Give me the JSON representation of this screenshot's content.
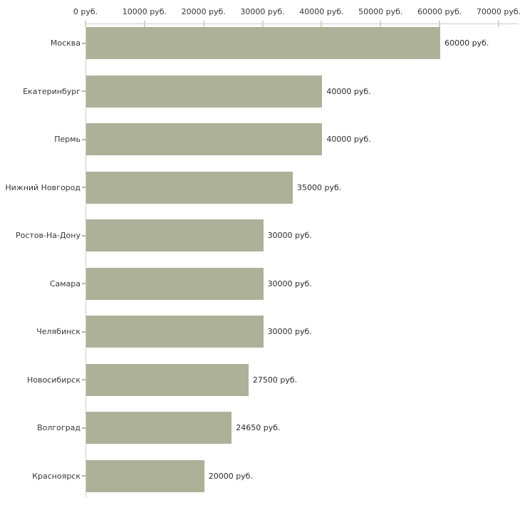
{
  "chart_data": {
    "type": "bar",
    "orientation": "horizontal",
    "title": "",
    "xlabel": "",
    "ylabel": "",
    "grid": false,
    "legend": false,
    "background": "#ffffff",
    "bar_color": "#adb197",
    "axis_line_color": "#cccccc",
    "tick_mark_color": "#d5d7b1",
    "text_color": "#383838",
    "categories": [
      "Москва",
      "Екатеринбург",
      "Пермь",
      "Нижний Новгород",
      "Ростов-На-Дону",
      "Самара",
      "Челябинск",
      "Новосибирск",
      "Волгоград",
      "Красноярск"
    ],
    "values": [
      60000,
      40000,
      40000,
      35000,
      30000,
      30000,
      30000,
      27500,
      24650,
      20000
    ],
    "value_labels": [
      "60000 руб.",
      "40000 руб.",
      "40000 руб.",
      "35000 руб.",
      "30000 руб.",
      "30000 руб.",
      "30000 руб.",
      "27500 руб.",
      "24650 руб.",
      "20000 руб."
    ],
    "x_axis": {
      "position": "top",
      "min": 0,
      "max": 70000,
      "tick_values": [
        0,
        10000,
        20000,
        30000,
        40000,
        50000,
        60000,
        70000
      ],
      "tick_labels": [
        "0 руб.",
        "10000 руб.",
        "20000 руб.",
        "30000 руб.",
        "40000 руб.",
        "50000 руб.",
        "60000 руб.",
        "70000 руб."
      ]
    }
  }
}
